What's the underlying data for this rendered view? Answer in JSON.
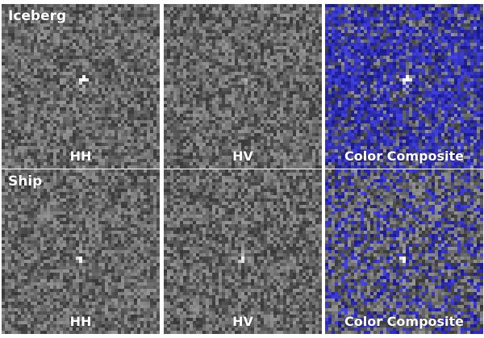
{
  "rows": [
    {
      "label": "Iceberg",
      "panels": [
        {
          "label": "HH",
          "tint": "#7a7a7a"
        },
        {
          "label": "HV",
          "tint": "#6e6e6e"
        },
        {
          "label": "Color Composite",
          "tint": "#5a5ab8"
        }
      ]
    },
    {
      "label": "Ship",
      "panels": [
        {
          "label": "HH",
          "tint": "#7a7a7a"
        },
        {
          "label": "HV",
          "tint": "#6e6e6e"
        },
        {
          "label": "Color Composite",
          "tint": "#7a7a9a"
        }
      ]
    }
  ]
}
